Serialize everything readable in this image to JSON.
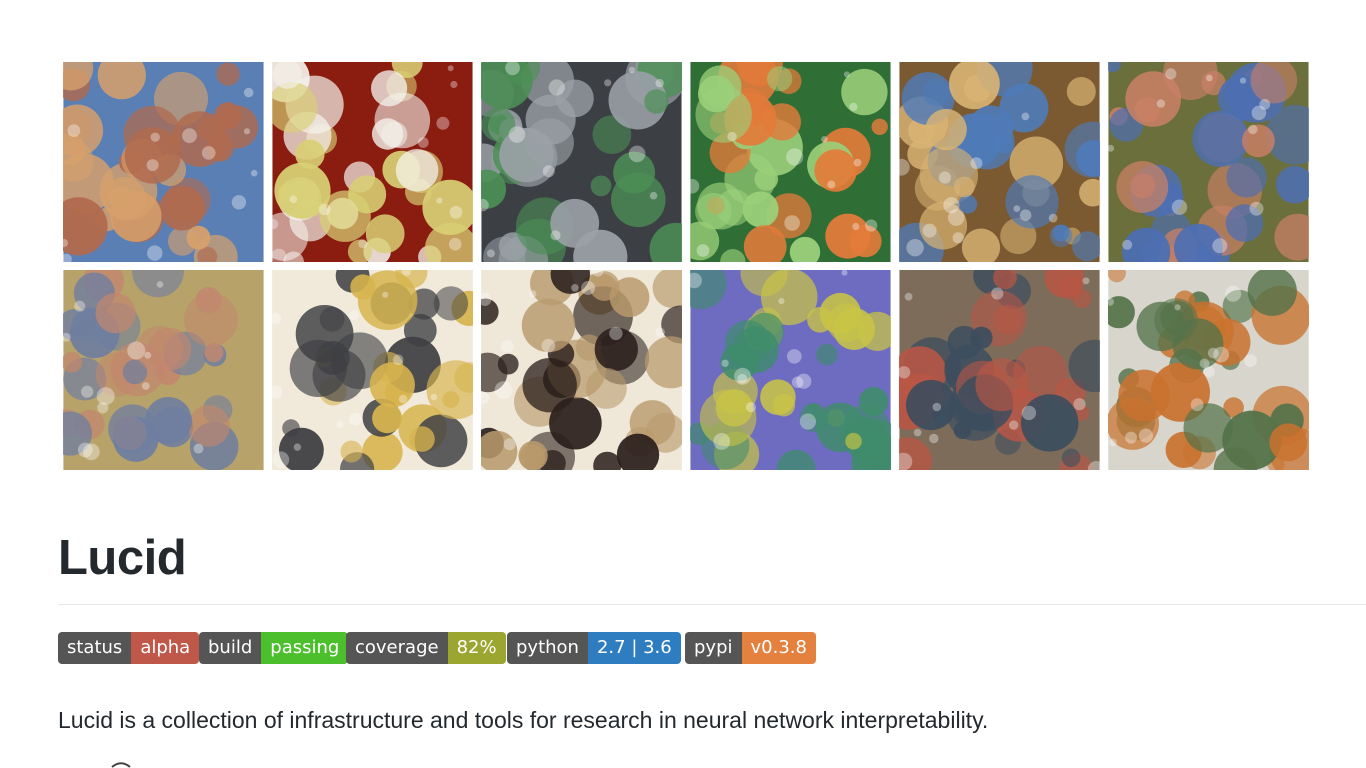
{
  "gallery": {
    "tiles": [
      {
        "name": "woven-braid-pattern-image",
        "colors": [
          "#5a7fb5",
          "#b06a4e",
          "#d6a06b"
        ]
      },
      {
        "name": "fuzzy-pom-poms-image",
        "colors": [
          "#8a1c10",
          "#d8cf74",
          "#f4f1ea"
        ]
      },
      {
        "name": "electronic-devices-image",
        "colors": [
          "#3c3f44",
          "#9aa0a6",
          "#4c8f56"
        ]
      },
      {
        "name": "orange-flowers-image",
        "colors": [
          "#2f6e35",
          "#e37b3a",
          "#9bd07a"
        ]
      },
      {
        "name": "ornate-towers-image",
        "colors": [
          "#7b5a32",
          "#d8b374",
          "#4e7bb9"
        ]
      },
      {
        "name": "legs-and-shorts-image",
        "colors": [
          "#6b6f3c",
          "#4d6fb3",
          "#c98065"
        ]
      },
      {
        "name": "pastel-blobs-image",
        "colors": [
          "#b7a36a",
          "#6f7ea0",
          "#c2876e"
        ]
      },
      {
        "name": "keyboard-text-image",
        "colors": [
          "#f1eadb",
          "#d6b44e",
          "#3f4044"
        ]
      },
      {
        "name": "black-beads-chain-image",
        "colors": [
          "#efe7d7",
          "#2b1f1c",
          "#b89a6c"
        ]
      },
      {
        "name": "colored-patches-image",
        "colors": [
          "#6e6cc0",
          "#c8c446",
          "#3f8c6b"
        ]
      },
      {
        "name": "eyes-and-masks-image",
        "colors": [
          "#7d6c5a",
          "#b95645",
          "#3c4d5e"
        ]
      },
      {
        "name": "food-dishes-image",
        "colors": [
          "#d7d5cc",
          "#c9722e",
          "#55734a"
        ]
      }
    ]
  },
  "header": {
    "title": "Lucid"
  },
  "badges": [
    {
      "name": "status-badge",
      "key": "status",
      "value": "alpha",
      "color": "#c0584a"
    },
    {
      "name": "build-badge",
      "key": "build",
      "value": "passing",
      "color": "#4cbf2d"
    },
    {
      "name": "coverage-badge",
      "key": "coverage",
      "value": "82%",
      "color": "#9aa62f"
    },
    {
      "name": "python-badge",
      "key": "python",
      "value": "2.7 | 3.6",
      "color": "#2f7dc1"
    },
    {
      "name": "pypi-badge",
      "key": "pypi",
      "value": "v0.3.8",
      "color": "#e4813f"
    }
  ],
  "description": "Lucid is a collection of infrastructure and tools for research in neural network interpretability."
}
